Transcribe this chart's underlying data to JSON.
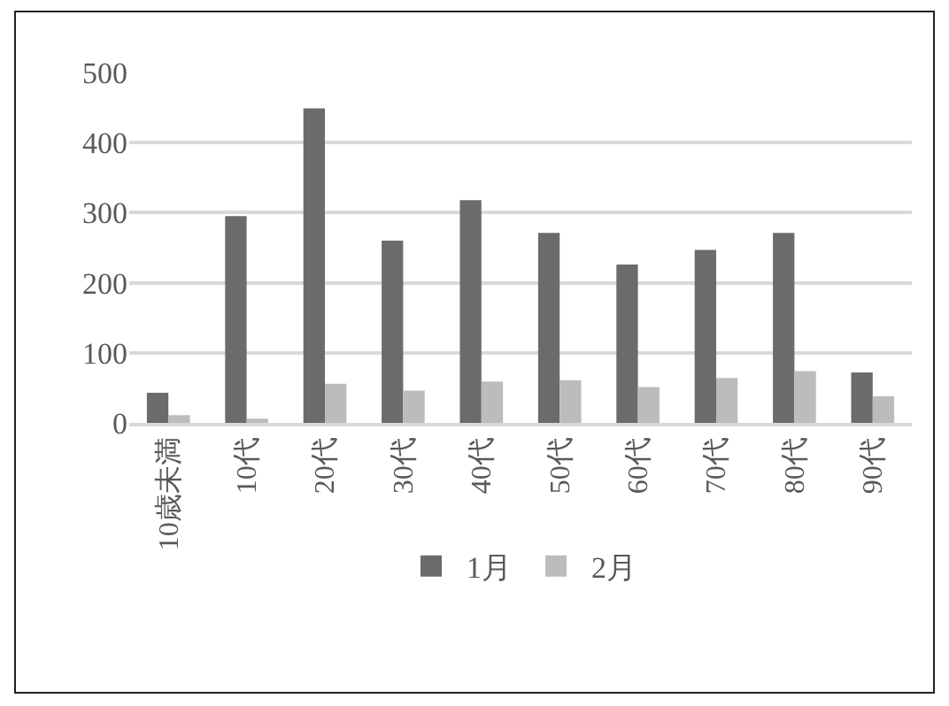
{
  "chart_data": {
    "type": "bar",
    "categories": [
      "10歳未満",
      "10代",
      "20代",
      "30代",
      "40代",
      "50代",
      "60代",
      "70代",
      "80代",
      "90代"
    ],
    "series": [
      {
        "name": "1月",
        "color": "#6b6b6b",
        "values": [
          43,
          295,
          449,
          260,
          318,
          271,
          226,
          247,
          271,
          72
        ]
      },
      {
        "name": "2月",
        "color": "#bbbcbb",
        "values": [
          11,
          6,
          56,
          46,
          59,
          61,
          51,
          64,
          74,
          38
        ]
      }
    ],
    "ylim": [
      0,
      500
    ],
    "yticks": [
      0,
      100,
      200,
      300,
      400,
      500
    ],
    "grid": "y",
    "legend": "bottom"
  }
}
